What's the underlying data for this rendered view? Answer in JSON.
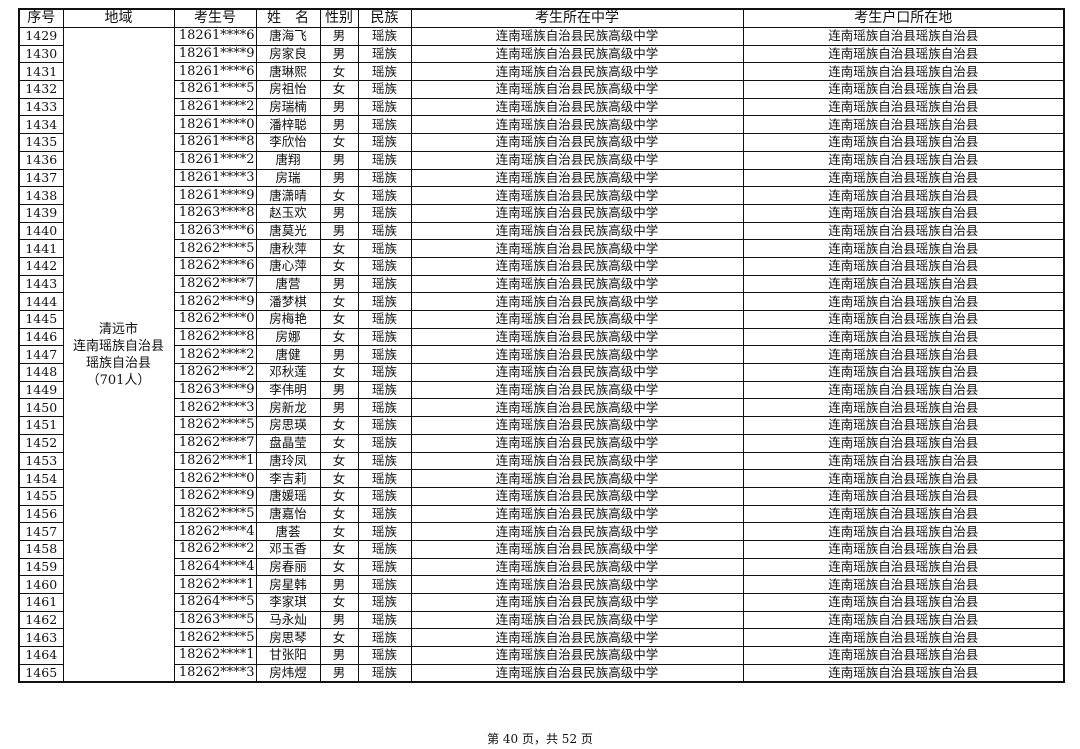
{
  "headers": [
    "序号",
    "地域",
    "考生号",
    "姓　名",
    "性别",
    "民族",
    "考生所在中学",
    "考生户口所在地"
  ],
  "region": {
    "line1": "清远市",
    "line2": "连南瑶族自治县瑶族自治县",
    "count": "（701人）"
  },
  "school": "连南瑶族自治县民族高级中学",
  "residence": "连南瑶族自治县瑶族自治县",
  "ethnicity": "瑶族",
  "rows": [
    [
      "1429",
      "18261****6",
      "唐海飞",
      "男"
    ],
    [
      "1430",
      "18261****9",
      "房家良",
      "男"
    ],
    [
      "1431",
      "18261****6",
      "唐琳熙",
      "女"
    ],
    [
      "1432",
      "18261****5",
      "房祖怡",
      "女"
    ],
    [
      "1433",
      "18261****2",
      "房瑞楠",
      "男"
    ],
    [
      "1434",
      "18261****0",
      "潘梓聪",
      "男"
    ],
    [
      "1435",
      "18261****8",
      "李欣怡",
      "女"
    ],
    [
      "1436",
      "18261****2",
      "唐翔",
      "男"
    ],
    [
      "1437",
      "18261****3",
      "房瑞",
      "男"
    ],
    [
      "1438",
      "18261****9",
      "唐潇晴",
      "女"
    ],
    [
      "1439",
      "18263****8",
      "赵玉欢",
      "男"
    ],
    [
      "1440",
      "18263****6",
      "唐莫光",
      "男"
    ],
    [
      "1441",
      "18262****5",
      "唐秋萍",
      "女"
    ],
    [
      "1442",
      "18262****6",
      "唐心萍",
      "女"
    ],
    [
      "1443",
      "18262****7",
      "唐营",
      "男"
    ],
    [
      "1444",
      "18262****9",
      "潘梦棋",
      "女"
    ],
    [
      "1445",
      "18262****0",
      "房梅艳",
      "女"
    ],
    [
      "1446",
      "18262****8",
      "房娜",
      "女"
    ],
    [
      "1447",
      "18262****2",
      "唐健",
      "男"
    ],
    [
      "1448",
      "18262****2",
      "邓秋莲",
      "女"
    ],
    [
      "1449",
      "18263****9",
      "李伟明",
      "男"
    ],
    [
      "1450",
      "18262****3",
      "房新龙",
      "男"
    ],
    [
      "1451",
      "18262****5",
      "房思瑛",
      "女"
    ],
    [
      "1452",
      "18262****7",
      "盘晶莹",
      "女"
    ],
    [
      "1453",
      "18262****1",
      "唐玲凤",
      "女"
    ],
    [
      "1454",
      "18262****0",
      "李吉莉",
      "女"
    ],
    [
      "1455",
      "18262****9",
      "唐媛瑶",
      "女"
    ],
    [
      "1456",
      "18262****5",
      "唐嘉怡",
      "女"
    ],
    [
      "1457",
      "18262****4",
      "唐荟",
      "女"
    ],
    [
      "1458",
      "18262****2",
      "邓玉香",
      "女"
    ],
    [
      "1459",
      "18264****4",
      "房春丽",
      "女"
    ],
    [
      "1460",
      "18262****1",
      "房星韩",
      "男"
    ],
    [
      "1461",
      "18264****5",
      "李家琪",
      "女"
    ],
    [
      "1462",
      "18263****5",
      "马永灿",
      "男"
    ],
    [
      "1463",
      "18262****5",
      "房思琴",
      "女"
    ],
    [
      "1464",
      "18262****1",
      "甘张阳",
      "男"
    ],
    [
      "1465",
      "18262****3",
      "房炜煜",
      "男"
    ]
  ],
  "footer": "第 40 页，共 52 页"
}
